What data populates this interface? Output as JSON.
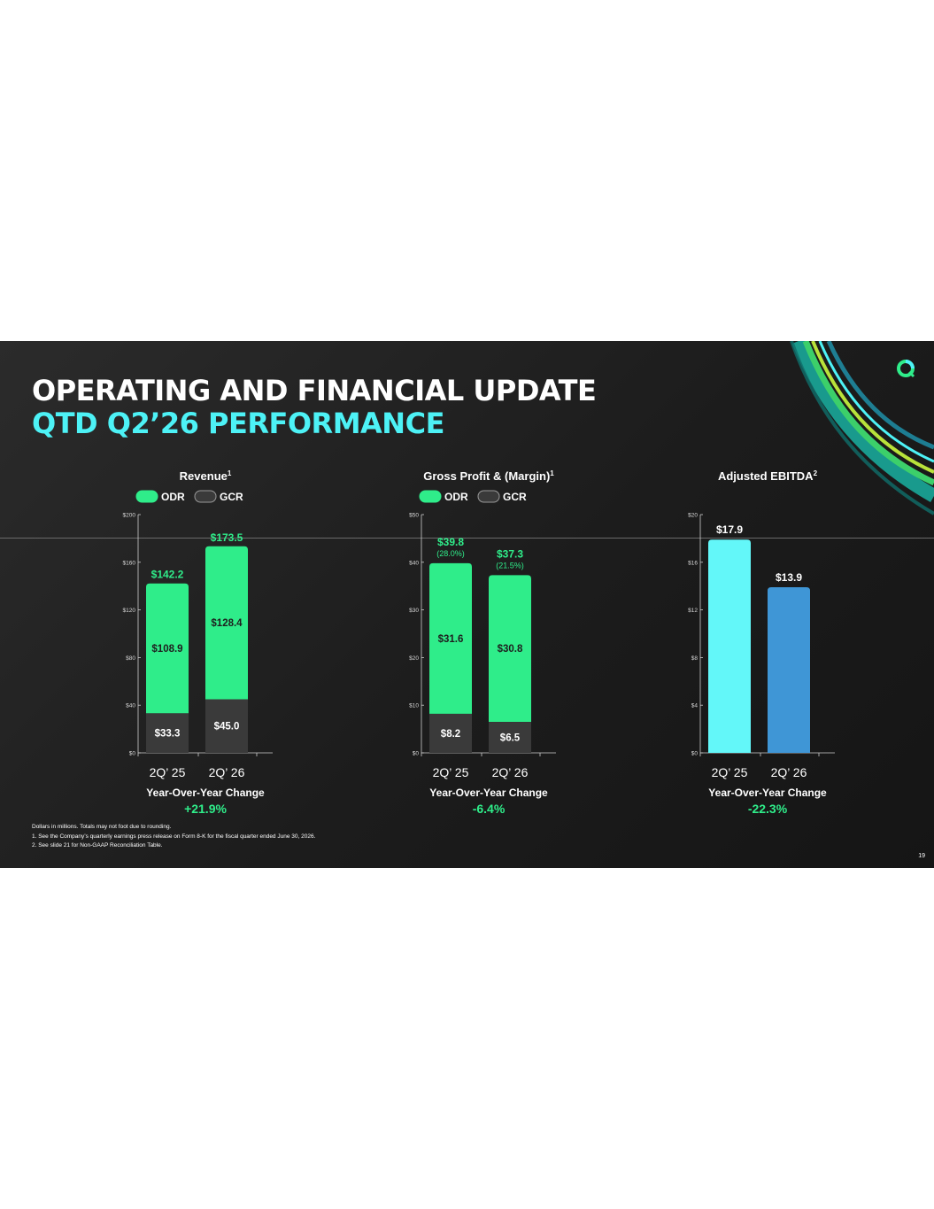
{
  "slide": {
    "title_line1": "OPERATING AND FINANCIAL UPDATE",
    "title_line2": "QTD Q2’26 PERFORMANCE",
    "page_number": "19",
    "colors": {
      "background": "#1f1f1f",
      "odr": "#2fed8a",
      "gcr": "#3a3a3a",
      "accent_cyan": "#4df2f6",
      "ebitda_2025": "#63f7f9",
      "ebitda_2026": "#3f96d6"
    },
    "footnotes": [
      "Dollars in millions. Totals may not foot due to rounding.",
      "1. See the Company’s quarterly earnings press release on Form 8-K for the fiscal quarter ended June 30, 2026.",
      "2. See slide 21 for Non-GAAP Reconciliation Table."
    ],
    "logo_icon": "leaf-ring-logo-icon"
  },
  "chart_data": [
    {
      "type": "bar",
      "stacked": true,
      "title": "Revenue",
      "title_sup": "1",
      "categories": [
        "2Q’ 25",
        "2Q’ 26"
      ],
      "series": [
        {
          "name": "GCR",
          "values": [
            33.3,
            45.0
          ],
          "labels": [
            "$33.3",
            "$45.0"
          ],
          "color": "#3a3a3a"
        },
        {
          "name": "ODR",
          "values": [
            108.9,
            128.4
          ],
          "labels": [
            "$108.9",
            "$128.4"
          ],
          "color": "#2fed8a"
        }
      ],
      "totals": [
        142.2,
        173.5
      ],
      "total_labels": [
        "$142.2",
        "$173.5"
      ],
      "ylim": [
        0,
        200
      ],
      "yticks": [
        0,
        40,
        80,
        120,
        160,
        200
      ],
      "ytick_labels": [
        "$0",
        "$40",
        "$80",
        "$120",
        "$160",
        "$200"
      ],
      "legend": [
        "ODR",
        "GCR"
      ],
      "legend_position": "top",
      "yoy_label": "Year-Over-Year Change",
      "yoy_value": "+21.9%"
    },
    {
      "type": "bar",
      "stacked": true,
      "title": "Gross Profit & (Margin)",
      "title_sup": "1",
      "categories": [
        "2Q’ 25",
        "2Q’ 26"
      ],
      "series": [
        {
          "name": "GCR",
          "values": [
            8.2,
            6.5
          ],
          "labels": [
            "$8.2",
            "$6.5"
          ],
          "color": "#3a3a3a"
        },
        {
          "name": "ODR",
          "values": [
            31.6,
            30.8
          ],
          "labels": [
            "$31.6",
            "$30.8"
          ],
          "color": "#2fed8a"
        }
      ],
      "totals": [
        39.8,
        37.3
      ],
      "total_labels": [
        "$39.8",
        "$37.3"
      ],
      "margins": [
        "(28.0%)",
        "(21.5%)"
      ],
      "ylim": [
        0,
        50
      ],
      "yticks": [
        0,
        10,
        20,
        30,
        40,
        50
      ],
      "ytick_labels": [
        "$0",
        "$10",
        "$20",
        "$30",
        "$40",
        "$50"
      ],
      "legend": [
        "ODR",
        "GCR"
      ],
      "legend_position": "top",
      "yoy_label": "Year-Over-Year Change",
      "yoy_value": "-6.4%"
    },
    {
      "type": "bar",
      "stacked": false,
      "title": "Adjusted EBITDA",
      "title_sup": "2",
      "categories": [
        "2Q’ 25",
        "2Q’ 26"
      ],
      "values": [
        17.9,
        13.9
      ],
      "value_labels": [
        "$17.9",
        "$13.9"
      ],
      "colors": [
        "#63f7f9",
        "#3f96d6"
      ],
      "ylim": [
        0,
        20
      ],
      "yticks": [
        0,
        4,
        8,
        12,
        16,
        20
      ],
      "ytick_labels": [
        "$0",
        "$4",
        "$8",
        "$12",
        "$16",
        "$20"
      ],
      "yoy_label": "Year-Over-Year Change",
      "yoy_value": "-22.3%"
    }
  ]
}
